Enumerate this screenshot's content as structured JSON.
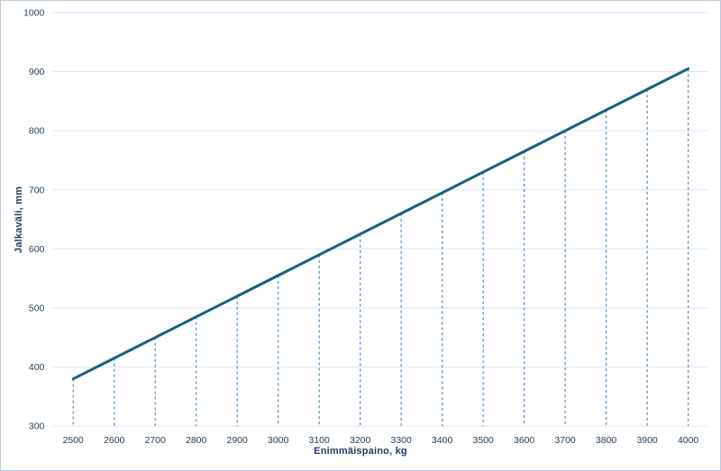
{
  "chart_data": {
    "type": "line",
    "title": "",
    "xlabel": "Enimmäispaino, kg",
    "ylabel": "Jalkaväli, mm",
    "x": [
      2500,
      2600,
      2700,
      2800,
      2900,
      3000,
      3100,
      3200,
      3300,
      3400,
      3500,
      3600,
      3700,
      3800,
      3900,
      4000
    ],
    "values": [
      380,
      415,
      450,
      485,
      520,
      555,
      590,
      625,
      660,
      695,
      730,
      765,
      800,
      835,
      870,
      905
    ],
    "xticks": [
      2500,
      2600,
      2700,
      2800,
      2900,
      3000,
      3100,
      3200,
      3300,
      3400,
      3500,
      3600,
      3700,
      3800,
      3900,
      4000
    ],
    "yticks": [
      300,
      400,
      500,
      600,
      700,
      800,
      900,
      1000
    ],
    "xlim": [
      2500,
      4000
    ],
    "ylim": [
      300,
      1000
    ],
    "grid": "horizontal",
    "droplines": "dashed vertical from line to x-axis at every tick",
    "legend": "none",
    "colors": {
      "line": "#15607f",
      "dropline": "#5b94c8",
      "gridline": "#dce6f2",
      "text": "#1f3a5a",
      "border": "#b9cce4",
      "background": "#ffffff"
    }
  }
}
